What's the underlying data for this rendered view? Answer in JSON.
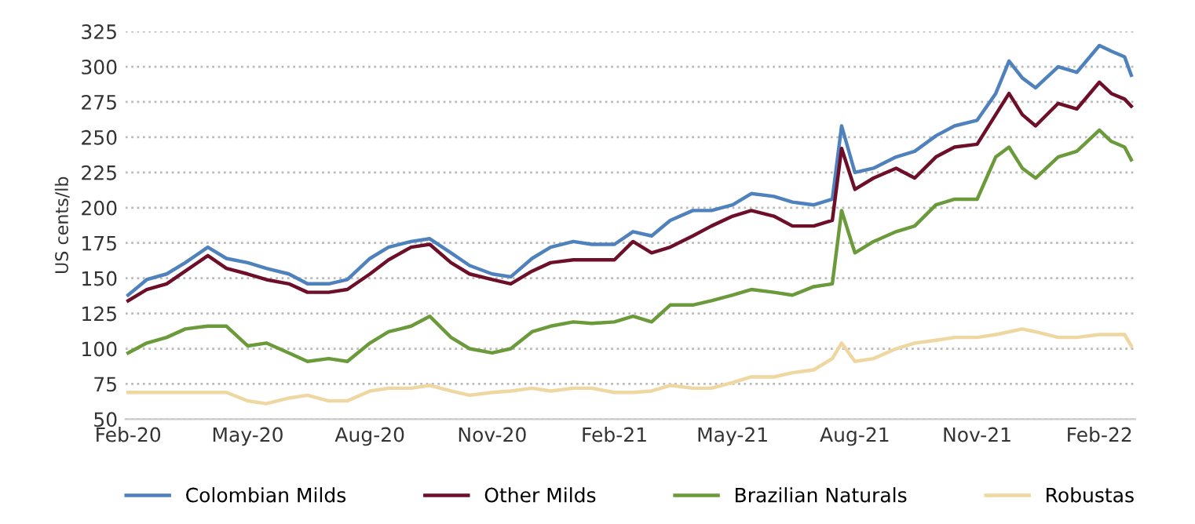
{
  "chart_data": {
    "type": "line",
    "ylabel": "US cents/lb",
    "x": [
      "2020-02-01",
      "2020-02-15",
      "2020-03-01",
      "2020-03-15",
      "2020-04-01",
      "2020-04-15",
      "2020-05-01",
      "2020-05-15",
      "2020-06-01",
      "2020-06-15",
      "2020-07-01",
      "2020-07-15",
      "2020-08-01",
      "2020-08-15",
      "2020-09-01",
      "2020-09-15",
      "2020-10-01",
      "2020-10-15",
      "2020-11-01",
      "2020-11-15",
      "2020-12-01",
      "2020-12-15",
      "2021-01-01",
      "2021-01-15",
      "2021-02-01",
      "2021-02-15",
      "2021-03-01",
      "2021-03-15",
      "2021-04-01",
      "2021-04-15",
      "2021-05-01",
      "2021-05-15",
      "2021-06-01",
      "2021-06-15",
      "2021-07-01",
      "2021-07-15",
      "2021-07-22",
      "2021-08-01",
      "2021-08-15",
      "2021-09-01",
      "2021-09-15",
      "2021-10-01",
      "2021-10-15",
      "2021-11-01",
      "2021-11-15",
      "2021-11-25",
      "2021-12-05",
      "2021-12-15",
      "2022-01-01",
      "2022-01-15",
      "2022-02-01",
      "2022-02-10",
      "2022-02-20",
      "2022-02-25"
    ],
    "series": [
      {
        "name": "Colombian Milds",
        "color": "#4f81bd",
        "values": [
          138,
          149,
          153,
          161,
          172,
          164,
          161,
          157,
          153,
          146,
          146,
          149,
          164,
          172,
          176,
          178,
          168,
          159,
          153,
          151,
          164,
          172,
          176,
          174,
          174,
          183,
          180,
          191,
          198,
          198,
          202,
          210,
          208,
          204,
          202,
          206,
          258,
          225,
          228,
          236,
          240,
          251,
          258,
          262,
          281,
          304,
          292,
          285,
          300,
          296,
          315,
          311,
          307,
          294
        ]
      },
      {
        "name": "Other Milds",
        "color": "#6e0f2a",
        "values": [
          134,
          142,
          146,
          155,
          166,
          157,
          153,
          149,
          146,
          140,
          140,
          142,
          153,
          163,
          172,
          174,
          161,
          153,
          149,
          146,
          155,
          161,
          163,
          163,
          163,
          176,
          168,
          172,
          180,
          187,
          194,
          198,
          194,
          187,
          187,
          191,
          242,
          213,
          221,
          228,
          221,
          236,
          243,
          245,
          266,
          281,
          266,
          258,
          274,
          270,
          289,
          281,
          277,
          272
        ]
      },
      {
        "name": "Brazilian Naturals",
        "color": "#6a9a3a",
        "values": [
          97,
          104,
          108,
          114,
          116,
          116,
          102,
          104,
          97,
          91,
          93,
          91,
          104,
          112,
          116,
          123,
          108,
          100,
          97,
          100,
          112,
          116,
          119,
          118,
          119,
          123,
          119,
          131,
          131,
          134,
          138,
          142,
          140,
          138,
          144,
          146,
          198,
          168,
          176,
          183,
          187,
          202,
          206,
          206,
          236,
          243,
          228,
          221,
          236,
          240,
          255,
          247,
          243,
          234
        ]
      },
      {
        "name": "Robustas",
        "color": "#eed7a1",
        "values": [
          69,
          69,
          69,
          69,
          69,
          69,
          63,
          61,
          65,
          67,
          63,
          63,
          70,
          72,
          72,
          74,
          70,
          67,
          69,
          70,
          72,
          70,
          72,
          72,
          69,
          69,
          70,
          74,
          72,
          72,
          76,
          80,
          80,
          83,
          85,
          93,
          104,
          91,
          93,
          100,
          104,
          106,
          108,
          108,
          110,
          112,
          114,
          112,
          108,
          108,
          110,
          110,
          110,
          102
        ]
      }
    ],
    "xlim": [
      "2020-01-30",
      "2022-02-28"
    ],
    "xticks": [
      {
        "value": "2020-02-01",
        "label": "Feb-20"
      },
      {
        "value": "2020-05-01",
        "label": "May-20"
      },
      {
        "value": "2020-08-01",
        "label": "Aug-20"
      },
      {
        "value": "2020-11-01",
        "label": "Nov-20"
      },
      {
        "value": "2021-02-01",
        "label": "Feb-21"
      },
      {
        "value": "2021-05-01",
        "label": "May-21"
      },
      {
        "value": "2021-08-01",
        "label": "Aug-21"
      },
      {
        "value": "2021-11-01",
        "label": "Nov-21"
      },
      {
        "value": "2022-02-01",
        "label": "Feb-22"
      }
    ],
    "ylim": [
      50,
      325
    ],
    "yticks": [
      50,
      75,
      100,
      125,
      150,
      175,
      200,
      225,
      250,
      275,
      300,
      325
    ],
    "grid": "y",
    "legend": "bottom",
    "line_style": "solid"
  }
}
